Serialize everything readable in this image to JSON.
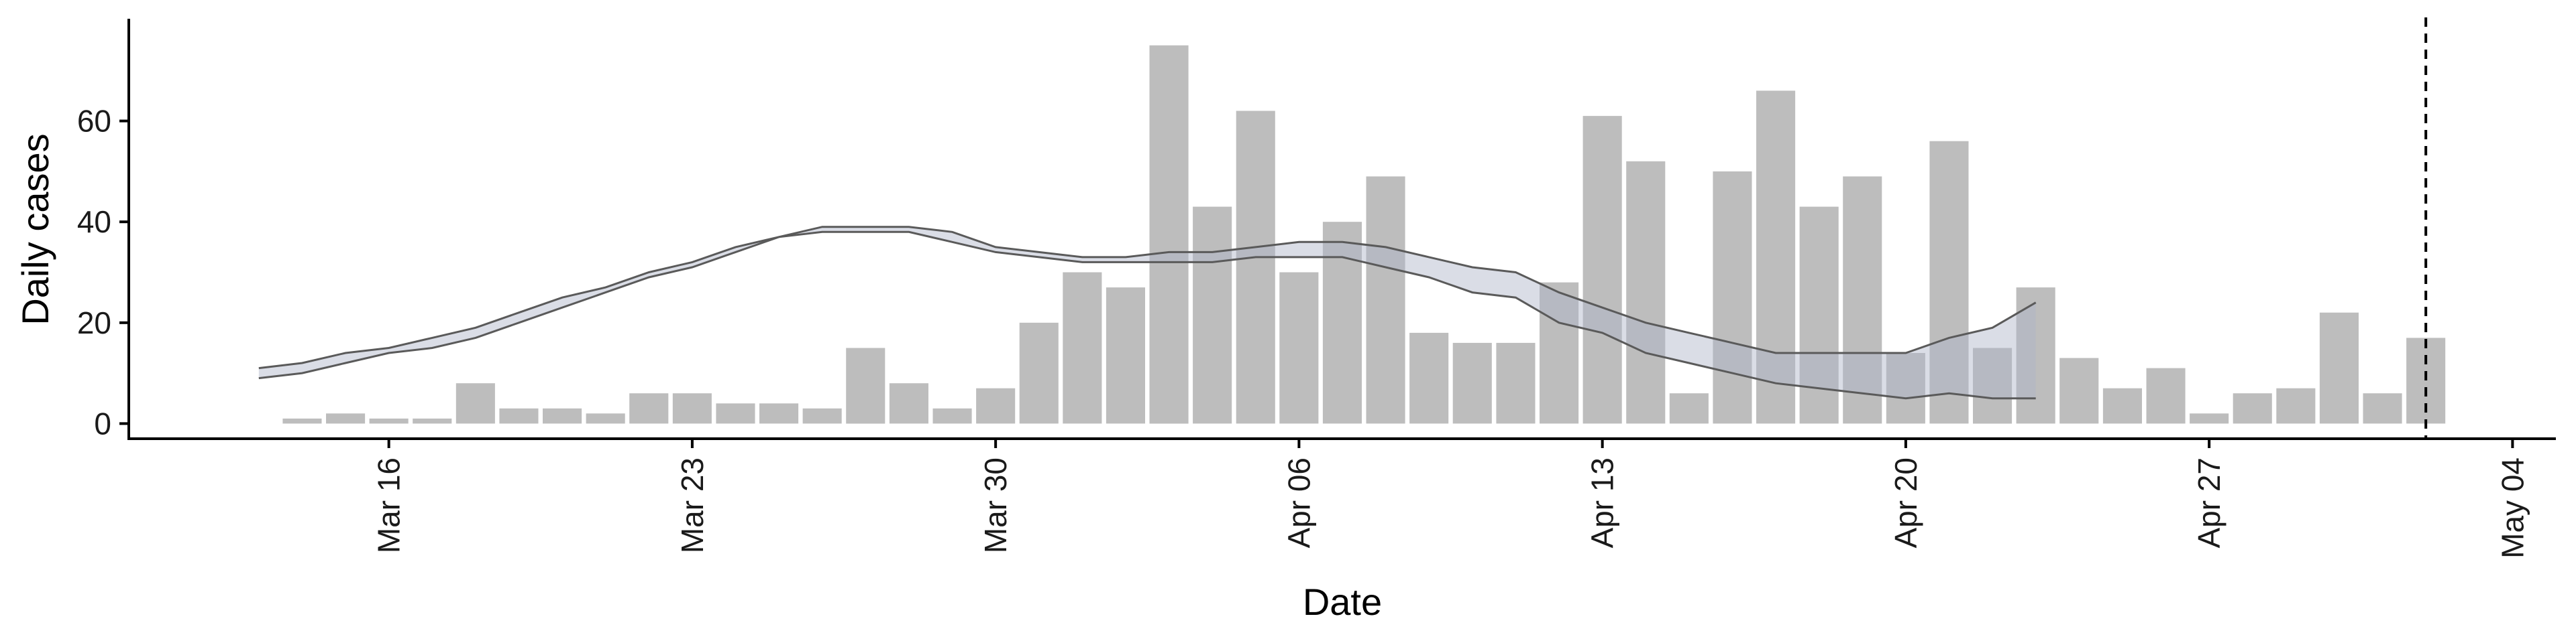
{
  "chart_data": {
    "type": "bar",
    "xlabel": "Date",
    "ylabel": "Daily cases",
    "x_tick_labels": [
      "Mar 16",
      "Mar 23",
      "Mar 30",
      "Apr 06",
      "Apr 13",
      "Apr 20",
      "Apr 27",
      "May 04"
    ],
    "y_ticks": [
      0,
      20,
      40,
      60
    ],
    "ylim": [
      -3,
      80
    ],
    "xlim": [
      "2020-03-10",
      "2020-05-05"
    ],
    "grid": false,
    "vertical_dashed_line": "2020-05-02",
    "bars": {
      "dates": [
        "2020-03-14",
        "2020-03-15",
        "2020-03-16",
        "2020-03-17",
        "2020-03-18",
        "2020-03-19",
        "2020-03-20",
        "2020-03-21",
        "2020-03-22",
        "2020-03-23",
        "2020-03-24",
        "2020-03-25",
        "2020-03-26",
        "2020-03-27",
        "2020-03-28",
        "2020-03-29",
        "2020-03-30",
        "2020-03-31",
        "2020-04-01",
        "2020-04-02",
        "2020-04-03",
        "2020-04-04",
        "2020-04-05",
        "2020-04-06",
        "2020-04-07",
        "2020-04-08",
        "2020-04-09",
        "2020-04-10",
        "2020-04-11",
        "2020-04-12",
        "2020-04-13",
        "2020-04-14",
        "2020-04-15",
        "2020-04-16",
        "2020-04-17",
        "2020-04-18",
        "2020-04-19",
        "2020-04-20",
        "2020-04-21",
        "2020-04-22",
        "2020-04-23",
        "2020-04-24",
        "2020-04-25",
        "2020-04-26",
        "2020-04-27",
        "2020-04-28",
        "2020-04-29",
        "2020-04-30",
        "2020-05-01",
        "2020-05-02"
      ],
      "values": [
        1,
        2,
        1,
        1,
        8,
        3,
        3,
        2,
        6,
        6,
        4,
        4,
        3,
        15,
        8,
        3,
        7,
        20,
        30,
        27,
        75,
        43,
        62,
        30,
        40,
        49,
        18,
        16,
        16,
        28,
        61,
        52,
        6,
        50,
        66,
        43,
        49,
        14,
        56,
        15,
        27,
        13,
        7,
        11,
        2,
        6,
        7,
        22,
        6,
        17
      ]
    },
    "estimate_band": {
      "dates": [
        "2020-03-13",
        "2020-03-14",
        "2020-03-15",
        "2020-03-16",
        "2020-03-17",
        "2020-03-18",
        "2020-03-19",
        "2020-03-20",
        "2020-03-21",
        "2020-03-22",
        "2020-03-23",
        "2020-03-24",
        "2020-03-25",
        "2020-03-26",
        "2020-03-27",
        "2020-03-28",
        "2020-03-29",
        "2020-03-30",
        "2020-03-31",
        "2020-04-01",
        "2020-04-02",
        "2020-04-03",
        "2020-04-04",
        "2020-04-05",
        "2020-04-06",
        "2020-04-07",
        "2020-04-08",
        "2020-04-09",
        "2020-04-10",
        "2020-04-11",
        "2020-04-12",
        "2020-04-13",
        "2020-04-14",
        "2020-04-15",
        "2020-04-16",
        "2020-04-17",
        "2020-04-18",
        "2020-04-19",
        "2020-04-20",
        "2020-04-21",
        "2020-04-22",
        "2020-04-23"
      ],
      "upper": [
        11,
        12,
        14,
        15,
        17,
        19,
        22,
        25,
        27,
        30,
        32,
        35,
        37,
        39,
        39,
        39,
        38,
        35,
        34,
        33,
        33,
        34,
        34,
        35,
        36,
        36,
        35,
        33,
        31,
        30,
        26,
        23,
        20,
        18,
        16,
        14,
        14,
        14,
        14,
        17,
        19,
        24
      ],
      "lower": [
        9,
        10,
        12,
        14,
        15,
        17,
        20,
        23,
        26,
        29,
        31,
        34,
        37,
        38,
        38,
        38,
        36,
        34,
        33,
        32,
        32,
        32,
        32,
        33,
        33,
        33,
        31,
        29,
        26,
        25,
        20,
        18,
        14,
        12,
        10,
        8,
        7,
        6,
        5,
        6,
        5,
        5
      ]
    }
  }
}
